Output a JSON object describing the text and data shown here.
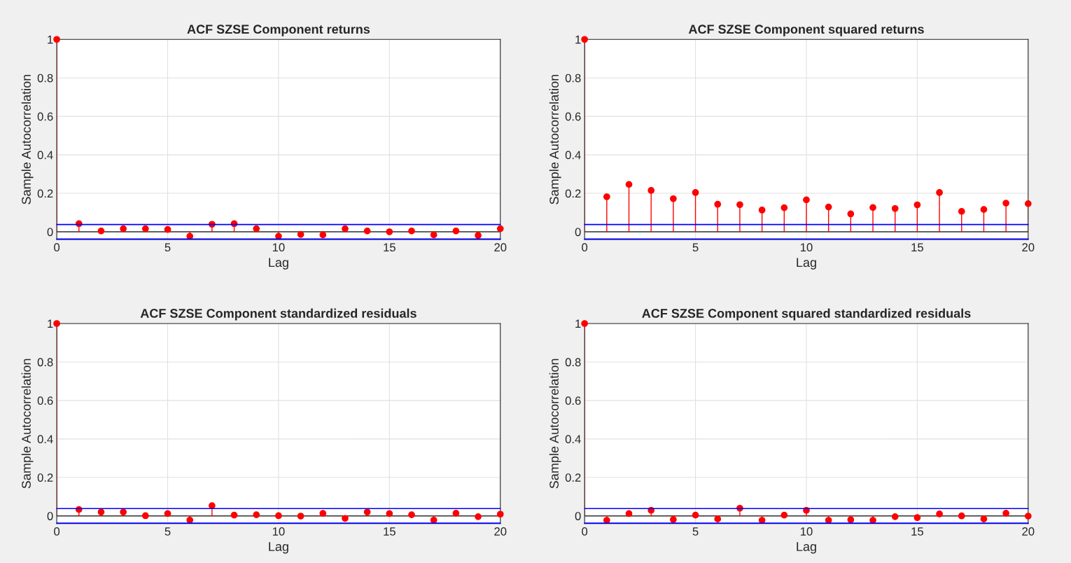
{
  "chart_data": [
    {
      "type": "lollipop",
      "title": "ACF SZSE Component returns",
      "xlabel": "Lag",
      "ylabel": "Sample Autocorrelation",
      "x": [
        0,
        1,
        2,
        3,
        4,
        5,
        6,
        7,
        8,
        9,
        10,
        11,
        12,
        13,
        14,
        15,
        16,
        17,
        18,
        19,
        20
      ],
      "series": [
        {
          "color": "#ff0000",
          "values": [
            1,
            0.042,
            0.004,
            0.016,
            0.016,
            0.012,
            -0.023,
            0.039,
            0.042,
            0.016,
            -0.023,
            -0.014,
            -0.016,
            0.016,
            0.004,
            0,
            0.004,
            -0.016,
            0.004,
            -0.019,
            0.016
          ]
        }
      ],
      "ref_lines": [
        {
          "axis": "y",
          "value": 0.038,
          "color": "#0000ff"
        },
        {
          "axis": "y",
          "value": -0.038,
          "color": "#0000ff"
        }
      ],
      "xlim": [
        0,
        20
      ],
      "ylim": [
        -0.04,
        1
      ],
      "xticks": [
        0,
        5,
        10,
        15,
        20
      ],
      "yticks": [
        0,
        0.2,
        0.4,
        0.6,
        0.8,
        1
      ],
      "grid": true,
      "marker": "circle"
    },
    {
      "type": "lollipop",
      "title": "ACF SZSE Component squared returns",
      "xlabel": "Lag",
      "ylabel": "Sample Autocorrelation",
      "x": [
        0,
        1,
        2,
        3,
        4,
        5,
        6,
        7,
        8,
        9,
        10,
        11,
        12,
        13,
        14,
        15,
        16,
        17,
        18,
        19,
        20
      ],
      "series": [
        {
          "color": "#ff0000",
          "values": [
            1,
            0.182,
            0.246,
            0.215,
            0.172,
            0.204,
            0.143,
            0.141,
            0.113,
            0.125,
            0.166,
            0.129,
            0.093,
            0.126,
            0.121,
            0.14,
            0.204,
            0.106,
            0.116,
            0.149,
            0.146
          ]
        }
      ],
      "ref_lines": [
        {
          "axis": "y",
          "value": 0.038,
          "color": "#0000ff"
        },
        {
          "axis": "y",
          "value": -0.038,
          "color": "#0000ff"
        }
      ],
      "xlim": [
        0,
        20
      ],
      "ylim": [
        -0.04,
        1
      ],
      "xticks": [
        0,
        5,
        10,
        15,
        20
      ],
      "yticks": [
        0,
        0.2,
        0.4,
        0.6,
        0.8,
        1
      ],
      "grid": true,
      "marker": "circle"
    },
    {
      "type": "lollipop",
      "title": "ACF SZSE Component standardized residuals",
      "xlabel": "Lag",
      "ylabel": "Sample Autocorrelation",
      "x": [
        0,
        1,
        2,
        3,
        4,
        5,
        6,
        7,
        8,
        9,
        10,
        11,
        12,
        13,
        14,
        15,
        16,
        17,
        18,
        19,
        20
      ],
      "series": [
        {
          "color": "#ff0000",
          "values": [
            1,
            0.033,
            0.02,
            0.02,
            0.001,
            0.012,
            -0.022,
            0.053,
            0.004,
            0.006,
            0.001,
            -0.001,
            0.013,
            -0.013,
            0.02,
            0.012,
            0.006,
            -0.022,
            0.014,
            -0.004,
            0.009
          ]
        }
      ],
      "ref_lines": [
        {
          "axis": "y",
          "value": 0.038,
          "color": "#0000ff"
        },
        {
          "axis": "y",
          "value": -0.038,
          "color": "#0000ff"
        }
      ],
      "xlim": [
        0,
        20
      ],
      "ylim": [
        -0.04,
        1
      ],
      "xticks": [
        0,
        5,
        10,
        15,
        20
      ],
      "yticks": [
        0,
        0.2,
        0.4,
        0.6,
        0.8,
        1
      ],
      "grid": true,
      "marker": "circle"
    },
    {
      "type": "lollipop",
      "title": "ACF SZSE Component squared standardized residuals",
      "xlabel": "Lag",
      "ylabel": "Sample Autocorrelation",
      "x": [
        0,
        1,
        2,
        3,
        4,
        5,
        6,
        7,
        8,
        9,
        10,
        11,
        12,
        13,
        14,
        15,
        16,
        17,
        18,
        19,
        20
      ],
      "series": [
        {
          "color": "#ff0000",
          "values": [
            1,
            -0.023,
            0.012,
            0.029,
            -0.019,
            0.004,
            -0.016,
            0.04,
            -0.023,
            0.004,
            0.029,
            -0.023,
            -0.02,
            -0.023,
            -0.004,
            -0.009,
            0.01,
            0,
            -0.016,
            0.014,
            -0.001
          ]
        }
      ],
      "ref_lines": [
        {
          "axis": "y",
          "value": 0.038,
          "color": "#0000ff"
        },
        {
          "axis": "y",
          "value": -0.038,
          "color": "#0000ff"
        }
      ],
      "xlim": [
        0,
        20
      ],
      "ylim": [
        -0.04,
        1
      ],
      "xticks": [
        0,
        5,
        10,
        15,
        20
      ],
      "yticks": [
        0,
        0.2,
        0.4,
        0.6,
        0.8,
        1
      ],
      "grid": true,
      "marker": "circle"
    }
  ]
}
